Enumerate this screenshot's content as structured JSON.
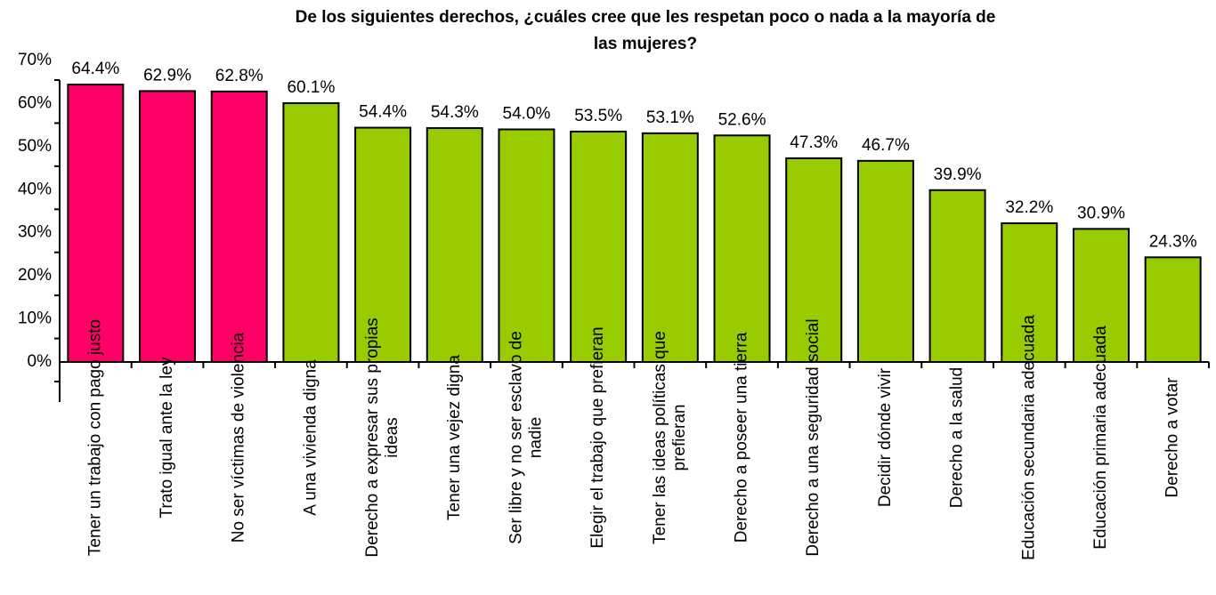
{
  "chart_data": {
    "type": "bar",
    "title": "De los siguientes derechos, ¿cuáles cree que les respetan poco o nada a la mayoría de\nlas mujeres?",
    "categories": [
      "Tener un trabajo con pago justo",
      "Trato igual ante la ley",
      "No ser víctimas de violencia",
      "A una vivienda digna",
      "Derecho a expresar sus propias\nideas",
      "Tener una vejez digna",
      "Ser libre y no ser esclavo de\nnadie",
      "Elegir el trabajo que prefieran",
      "Tener las ideas políticas que\nprefieran",
      "Derecho a poseer una tierra",
      "Derecho a una seguridad social",
      "Decidir dónde vivir",
      "Derecho a la salud",
      "Educación secundaria adecuada",
      "Educación primaria adecuada",
      "Derecho a votar"
    ],
    "values": [
      64.4,
      62.9,
      62.8,
      60.1,
      54.4,
      54.3,
      54.0,
      53.5,
      53.1,
      52.6,
      47.3,
      46.7,
      39.9,
      32.2,
      30.9,
      24.3
    ],
    "value_labels": [
      "64.4%",
      "62.9%",
      "62.8%",
      "60.1%",
      "54.4%",
      "54.3%",
      "54.0%",
      "53.5%",
      "53.1%",
      "52.6%",
      "47.3%",
      "46.7%",
      "39.9%",
      "32.2%",
      "30.9%",
      "24.3%"
    ],
    "colors": [
      "#ff0066",
      "#ff0066",
      "#ff0066",
      "#99cc00",
      "#99cc00",
      "#99cc00",
      "#99cc00",
      "#99cc00",
      "#99cc00",
      "#99cc00",
      "#99cc00",
      "#99cc00",
      "#99cc00",
      "#99cc00",
      "#99cc00",
      "#99cc00"
    ],
    "ylim": [
      0,
      70
    ],
    "yticks": [
      {
        "value": 0,
        "label": "0%"
      },
      {
        "value": 10,
        "label": "10%"
      },
      {
        "value": 20,
        "label": "20%"
      },
      {
        "value": 30,
        "label": "30%"
      },
      {
        "value": 40,
        "label": "40%"
      },
      {
        "value": 50,
        "label": "50%"
      },
      {
        "value": 60,
        "label": "60%"
      },
      {
        "value": 70,
        "label": "70%"
      }
    ]
  }
}
